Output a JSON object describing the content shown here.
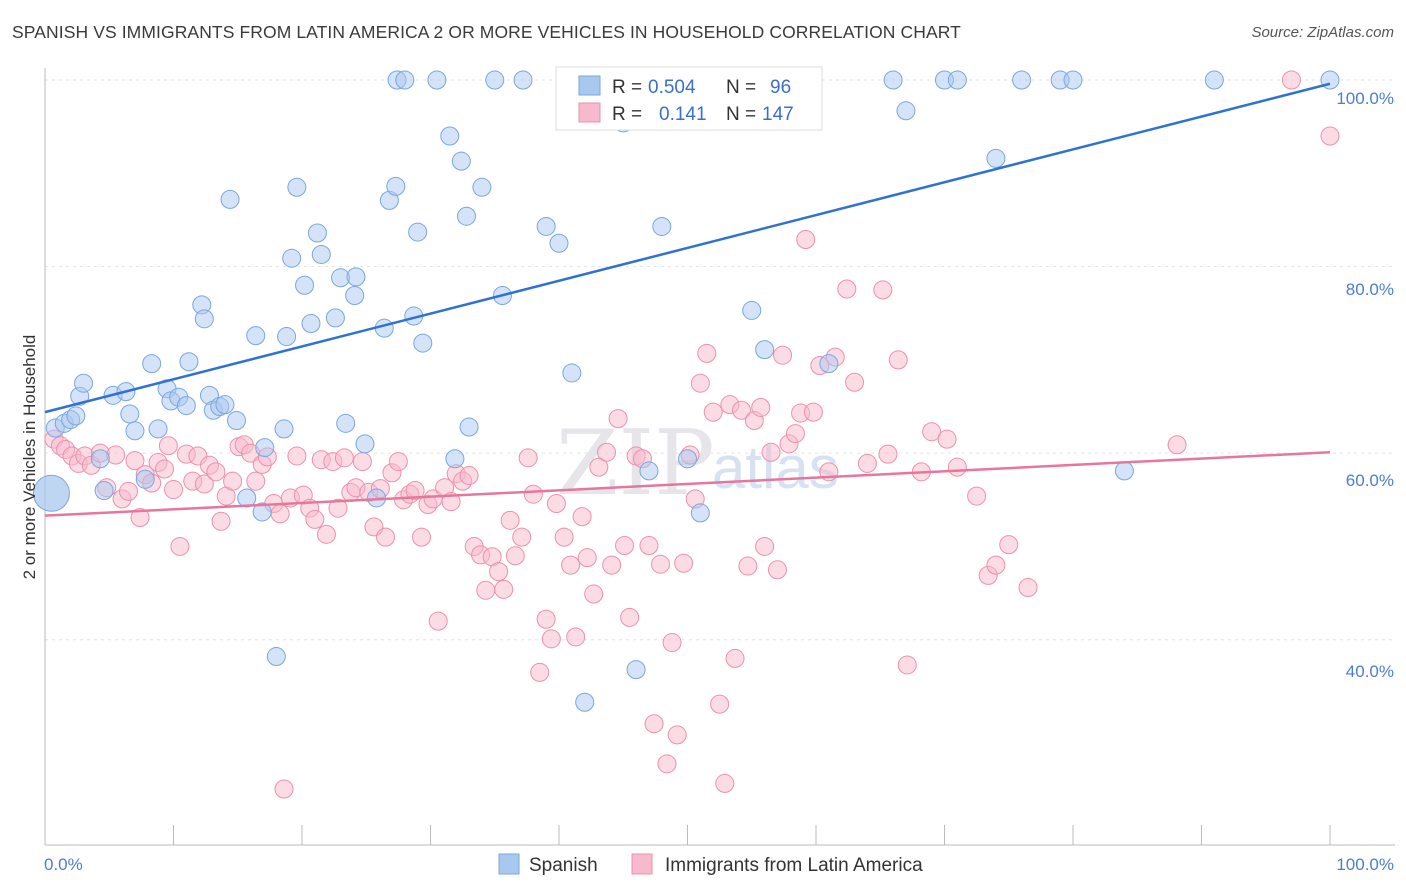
{
  "title": "SPANISH VS IMMIGRANTS FROM LATIN AMERICA 2 OR MORE VEHICLES IN HOUSEHOLD CORRELATION CHART",
  "source": "Source: ZipAtlas.com",
  "watermark": {
    "zip": "ZIP",
    "atlas": "atlas"
  },
  "colors": {
    "spanish": "#a9c8ef",
    "spanish_stroke": "#7aa7de",
    "spanish_line": "#2f72d1",
    "latin": "#f7b9cc",
    "latin_stroke": "#ee8fae",
    "latin_line": "#e8769c",
    "tick_text": "#4a7fcf"
  },
  "legend": {
    "rows": [
      {
        "r_label": "R =",
        "r_value": "0.504",
        "n_label": "N =",
        "n_value": "96"
      },
      {
        "r_label": "R =",
        "r_value": "0.141",
        "n_label": "N =",
        "n_value": "147"
      }
    ]
  },
  "chart_data": {
    "type": "scatter",
    "title": "SPANISH VS IMMIGRANTS FROM LATIN AMERICA 2 OR MORE VEHICLES IN HOUSEHOLD CORRELATION CHART",
    "xlabel": "",
    "ylabel": "2 or more Vehicles in Household",
    "xlim": [
      0,
      100
    ],
    "ylim": [
      18,
      100
    ],
    "x_tick_labels": [
      "0.0%",
      "100.0%"
    ],
    "y_ticks": [
      40,
      60,
      80,
      100
    ],
    "y_tick_labels": [
      "40.0%",
      "60.0%",
      "80.0%",
      "100.0%"
    ],
    "grid": true,
    "legend_position": "top-center",
    "series": [
      {
        "name": "Spanish",
        "R": 0.504,
        "N": 96,
        "trend": [
          [
            0,
            64.4
          ],
          [
            100,
            99.6
          ]
        ],
        "points": [
          [
            0.5,
            55.7
          ],
          [
            0.8,
            62.7
          ],
          [
            1.5,
            63.2
          ],
          [
            2,
            63.6
          ],
          [
            2.4,
            64.0
          ],
          [
            2.7,
            66.1
          ],
          [
            3.0,
            67.5
          ],
          [
            4.3,
            59.4
          ],
          [
            4.6,
            56.0
          ],
          [
            5.3,
            66.2
          ],
          [
            6.3,
            66.6
          ],
          [
            6.6,
            64.2
          ],
          [
            7.0,
            62.4
          ],
          [
            7.8,
            57.2
          ],
          [
            8.3,
            69.6
          ],
          [
            8.8,
            62.6
          ],
          [
            9.5,
            66.9
          ],
          [
            9.8,
            65.6
          ],
          [
            10.4,
            66.0
          ],
          [
            11.0,
            65.1
          ],
          [
            11.2,
            69.8
          ],
          [
            12.2,
            75.9
          ],
          [
            12.4,
            74.4
          ],
          [
            12.8,
            66.2
          ],
          [
            13.1,
            64.6
          ],
          [
            13.6,
            65.0
          ],
          [
            14.0,
            65.2
          ],
          [
            14.4,
            87.2
          ],
          [
            14.9,
            63.5
          ],
          [
            15.7,
            55.2
          ],
          [
            16.4,
            72.6
          ],
          [
            16.9,
            53.7
          ],
          [
            17.1,
            60.6
          ],
          [
            18.0,
            38.2
          ],
          [
            18.6,
            62.6
          ],
          [
            18.8,
            72.5
          ],
          [
            19.2,
            80.9
          ],
          [
            19.6,
            88.5
          ],
          [
            20.2,
            78.0
          ],
          [
            20.7,
            73.9
          ],
          [
            21.2,
            83.6
          ],
          [
            21.5,
            81.3
          ],
          [
            22.6,
            74.5
          ],
          [
            23.0,
            78.8
          ],
          [
            23.4,
            63.2
          ],
          [
            24.1,
            76.9
          ],
          [
            24.2,
            78.9
          ],
          [
            24.9,
            61.0
          ],
          [
            25.8,
            55.2
          ],
          [
            26.4,
            73.4
          ],
          [
            26.8,
            87.1
          ],
          [
            27.3,
            88.6
          ],
          [
            27.4,
            100
          ],
          [
            28.0,
            100
          ],
          [
            28.7,
            74.7
          ],
          [
            29.0,
            83.7
          ],
          [
            29.4,
            71.8
          ],
          [
            30.5,
            100
          ],
          [
            31.5,
            94.0
          ],
          [
            31.9,
            59.4
          ],
          [
            32.4,
            91.3
          ],
          [
            32.8,
            85.4
          ],
          [
            33.0,
            62.8
          ],
          [
            34.0,
            88.5
          ],
          [
            35.0,
            100
          ],
          [
            35.6,
            76.9
          ],
          [
            37.2,
            100
          ],
          [
            39.0,
            84.3
          ],
          [
            40.0,
            82.5
          ],
          [
            41.0,
            68.6
          ],
          [
            42.0,
            33.3
          ],
          [
            45.0,
            95.4
          ],
          [
            46.0,
            36.8
          ],
          [
            47.0,
            58.1
          ],
          [
            48.0,
            84.3
          ],
          [
            49.0,
            100
          ],
          [
            50.0,
            59.4
          ],
          [
            51.0,
            53.6
          ],
          [
            52.0,
            100
          ],
          [
            55.0,
            75.3
          ],
          [
            56.0,
            71.1
          ],
          [
            59.0,
            100
          ],
          [
            61.0,
            69.6
          ],
          [
            66.0,
            100
          ],
          [
            67.0,
            96.7
          ],
          [
            70.0,
            100
          ],
          [
            71.0,
            100
          ],
          [
            74.0,
            91.6
          ],
          [
            76.0,
            100
          ],
          [
            79.0,
            100
          ],
          [
            80.0,
            100
          ],
          [
            84.0,
            58.1
          ],
          [
            91.0,
            100
          ],
          [
            100.0,
            100
          ]
        ]
      },
      {
        "name": "Immigrants from Latin America",
        "R": 0.141,
        "N": 147,
        "trend": [
          [
            0,
            53.3
          ],
          [
            100,
            60.1
          ]
        ],
        "points": [
          [
            0.7,
            61.5
          ],
          [
            1.2,
            60.8
          ],
          [
            1.6,
            60.4
          ],
          [
            2.1,
            59.7
          ],
          [
            2.6,
            58.9
          ],
          [
            3.1,
            59.7
          ],
          [
            3.6,
            58.7
          ],
          [
            4.3,
            60.0
          ],
          [
            4.8,
            56.3
          ],
          [
            5.5,
            59.8
          ],
          [
            6.0,
            55.1
          ],
          [
            6.5,
            55.9
          ],
          [
            7.0,
            59.2
          ],
          [
            7.4,
            53.1
          ],
          [
            7.8,
            57.7
          ],
          [
            8.3,
            56.8
          ],
          [
            8.8,
            59.0
          ],
          [
            9.3,
            58.3
          ],
          [
            9.6,
            60.8
          ],
          [
            10.0,
            56.1
          ],
          [
            10.5,
            50.0
          ],
          [
            11.0,
            59.9
          ],
          [
            11.5,
            57.0
          ],
          [
            11.9,
            59.7
          ],
          [
            12.4,
            56.7
          ],
          [
            12.8,
            58.7
          ],
          [
            13.3,
            58.0
          ],
          [
            13.7,
            52.7
          ],
          [
            14.1,
            55.4
          ],
          [
            14.6,
            57.0
          ],
          [
            15.1,
            60.7
          ],
          [
            15.5,
            60.9
          ],
          [
            16.0,
            60.0
          ],
          [
            16.4,
            57.0
          ],
          [
            16.9,
            58.8
          ],
          [
            17.3,
            59.6
          ],
          [
            17.8,
            54.6
          ],
          [
            18.3,
            53.5
          ],
          [
            18.6,
            24.0
          ],
          [
            19.1,
            55.2
          ],
          [
            19.6,
            59.7
          ],
          [
            20.1,
            55.5
          ],
          [
            20.6,
            54.1
          ],
          [
            21.0,
            52.9
          ],
          [
            21.5,
            59.3
          ],
          [
            21.9,
            51.3
          ],
          [
            22.4,
            59.1
          ],
          [
            22.8,
            54.1
          ],
          [
            23.3,
            59.5
          ],
          [
            23.8,
            55.8
          ],
          [
            24.2,
            56.3
          ],
          [
            24.7,
            59.1
          ],
          [
            25.2,
            55.8
          ],
          [
            25.6,
            52.1
          ],
          [
            26.1,
            56.2
          ],
          [
            26.5,
            51.0
          ],
          [
            27.0,
            57.9
          ],
          [
            27.5,
            59.1
          ],
          [
            27.9,
            55.0
          ],
          [
            28.4,
            55.6
          ],
          [
            28.8,
            56.0
          ],
          [
            29.3,
            51.0
          ],
          [
            29.8,
            54.5
          ],
          [
            30.2,
            55.1
          ],
          [
            30.6,
            42.0
          ],
          [
            31.1,
            56.3
          ],
          [
            31.6,
            54.8
          ],
          [
            32.0,
            57.8
          ],
          [
            32.5,
            57.0
          ],
          [
            33.0,
            57.6
          ],
          [
            33.4,
            50.0
          ],
          [
            33.9,
            49.1
          ],
          [
            34.3,
            45.3
          ],
          [
            34.8,
            48.9
          ],
          [
            35.3,
            47.3
          ],
          [
            35.7,
            45.4
          ],
          [
            36.2,
            52.8
          ],
          [
            36.6,
            49.0
          ],
          [
            37.1,
            51.0
          ],
          [
            37.6,
            59.5
          ],
          [
            38.0,
            55.6
          ],
          [
            38.5,
            36.5
          ],
          [
            39.0,
            42.2
          ],
          [
            39.4,
            40.1
          ],
          [
            39.8,
            54.6
          ],
          [
            40.4,
            51.0
          ],
          [
            40.9,
            48.0
          ],
          [
            41.3,
            40.3
          ],
          [
            41.8,
            53.2
          ],
          [
            42.2,
            48.8
          ],
          [
            42.7,
            44.9
          ],
          [
            43.1,
            58.5
          ],
          [
            43.7,
            60.1
          ],
          [
            44.1,
            48.0
          ],
          [
            44.6,
            63.7
          ],
          [
            45.1,
            50.1
          ],
          [
            45.5,
            42.4
          ],
          [
            46.0,
            59.7
          ],
          [
            46.5,
            59.4
          ],
          [
            47.0,
            50.1
          ],
          [
            47.4,
            31.0
          ],
          [
            47.9,
            48.1
          ],
          [
            48.4,
            26.7
          ],
          [
            48.8,
            39.7
          ],
          [
            49.2,
            29.8
          ],
          [
            49.7,
            48.2
          ],
          [
            50.2,
            59.8
          ],
          [
            50.6,
            55.1
          ],
          [
            51.0,
            67.5
          ],
          [
            51.5,
            70.7
          ],
          [
            52.0,
            64.4
          ],
          [
            52.5,
            33.1
          ],
          [
            52.9,
            24.6
          ],
          [
            53.3,
            65.2
          ],
          [
            53.7,
            38.0
          ],
          [
            54.2,
            64.6
          ],
          [
            54.7,
            47.9
          ],
          [
            55.2,
            63.5
          ],
          [
            55.7,
            64.9
          ],
          [
            56.0,
            50.0
          ],
          [
            56.5,
            60.1
          ],
          [
            57.0,
            47.5
          ],
          [
            57.4,
            70.5
          ],
          [
            57.9,
            61.0
          ],
          [
            58.4,
            62.1
          ],
          [
            58.8,
            64.3
          ],
          [
            59.2,
            82.9
          ],
          [
            59.8,
            64.4
          ],
          [
            60.3,
            69.4
          ],
          [
            61.0,
            58.0
          ],
          [
            61.5,
            70.3
          ],
          [
            62.4,
            77.6
          ],
          [
            63.0,
            67.6
          ],
          [
            64.0,
            58.9
          ],
          [
            65.2,
            77.5
          ],
          [
            65.6,
            59.9
          ],
          [
            66.4,
            70.0
          ],
          [
            67.1,
            37.3
          ],
          [
            68.2,
            58.0
          ],
          [
            69.0,
            62.3
          ],
          [
            70.2,
            61.5
          ],
          [
            71.0,
            58.5
          ],
          [
            72.5,
            55.4
          ],
          [
            73.4,
            46.9
          ],
          [
            74.0,
            48.0
          ],
          [
            75.0,
            50.2
          ],
          [
            76.5,
            45.6
          ],
          [
            88.1,
            60.9
          ],
          [
            97.0,
            100
          ],
          [
            100.0,
            94.0
          ]
        ]
      }
    ]
  },
  "axes": {
    "ylabel": "2 or more Vehicles in Household",
    "x_left": "0.0%",
    "x_right": "100.0%",
    "y_ticks": [
      "100.0%",
      "80.0%",
      "60.0%",
      "40.0%"
    ]
  },
  "bottom_legend": {
    "spanish": "Spanish",
    "latin": "Immigrants from Latin America"
  }
}
